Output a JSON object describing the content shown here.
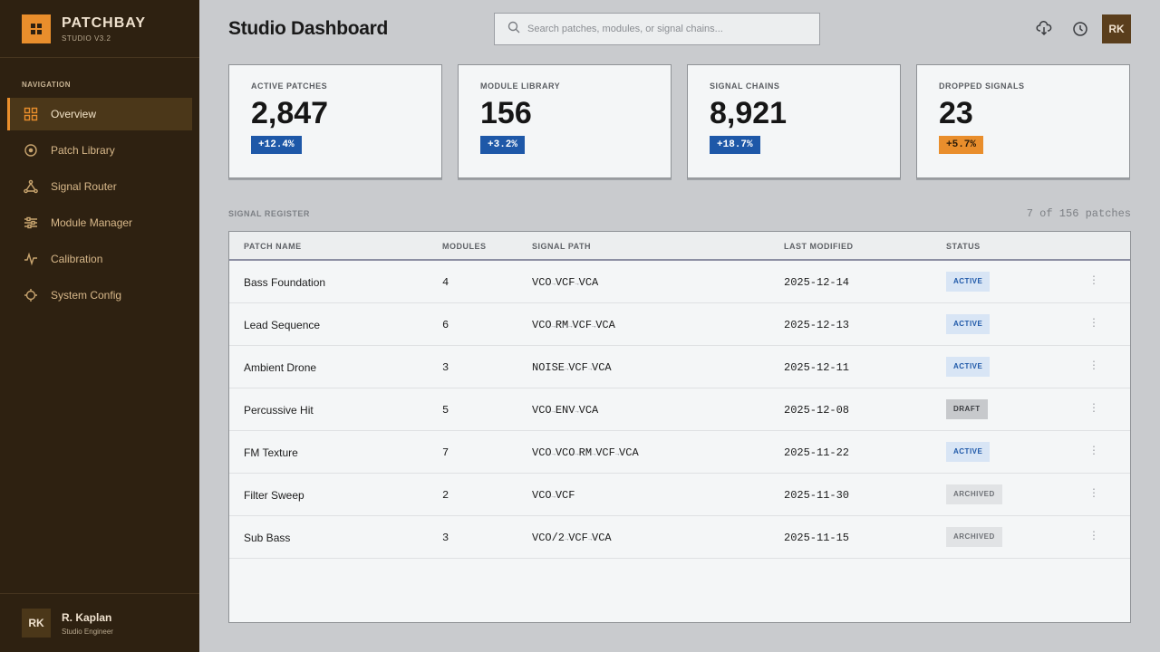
{
  "brand": {
    "name": "PATCHBAY",
    "version": "STUDIO V3.2"
  },
  "nav": {
    "heading": "NAVIGATION",
    "items": [
      {
        "label": "Overview",
        "icon": "grid-icon",
        "active": true
      },
      {
        "label": "Patch Library",
        "icon": "circle-dot-icon",
        "active": false
      },
      {
        "label": "Signal Router",
        "icon": "network-icon",
        "active": false
      },
      {
        "label": "Module Manager",
        "icon": "sliders-icon",
        "active": false
      },
      {
        "label": "Calibration",
        "icon": "pulse-icon",
        "active": false
      },
      {
        "label": "System Config",
        "icon": "crosshair-icon",
        "active": false
      }
    ]
  },
  "user": {
    "initials": "RK",
    "name": "R. Kaplan",
    "role": "Studio Engineer"
  },
  "header": {
    "title": "Studio Dashboard",
    "search_placeholder": "Search patches, modules, or signal chains...",
    "avatar_initials": "RK"
  },
  "stats": [
    {
      "label": "ACTIVE PATCHES",
      "value": "2,847",
      "delta": "+12.4%"
    },
    {
      "label": "MODULE LIBRARY",
      "value": "156",
      "delta": "+3.2%"
    },
    {
      "label": "SIGNAL CHAINS",
      "value": "8,921",
      "delta": "+18.7%"
    },
    {
      "label": "DROPPED SIGNALS",
      "value": "23",
      "delta": "+5.7%"
    }
  ],
  "register": {
    "label": "SIGNAL REGISTER",
    "count": "7 of 156 patches",
    "columns": [
      "PATCH NAME",
      "MODULES",
      "SIGNAL PATH",
      "LAST MODIFIED",
      "STATUS"
    ],
    "rows": [
      {
        "name": "Bass Foundation",
        "modules": "4",
        "path": [
          "VCO",
          "VCF",
          "VCA"
        ],
        "modified": "2025-12-14",
        "status": "ACTIVE"
      },
      {
        "name": "Lead Sequence",
        "modules": "6",
        "path": [
          "VCO",
          "RM",
          "VCF",
          "VCA"
        ],
        "modified": "2025-12-13",
        "status": "ACTIVE"
      },
      {
        "name": "Ambient Drone",
        "modules": "3",
        "path": [
          "NOISE",
          "VCF",
          "VCA"
        ],
        "modified": "2025-12-11",
        "status": "ACTIVE"
      },
      {
        "name": "Percussive Hit",
        "modules": "5",
        "path": [
          "VCO",
          "ENV",
          "VCA"
        ],
        "modified": "2025-12-08",
        "status": "DRAFT"
      },
      {
        "name": "FM Texture",
        "modules": "7",
        "path": [
          "VCO",
          "VCO",
          "RM",
          "VCF",
          "VCA"
        ],
        "modified": "2025-11-22",
        "status": "ACTIVE"
      },
      {
        "name": "Filter Sweep",
        "modules": "2",
        "path": [
          "VCO",
          "VCF"
        ],
        "modified": "2025-11-30",
        "status": "ARCHIVED"
      },
      {
        "name": "Sub Bass",
        "modules": "3",
        "path": [
          "VCO/2",
          "VCF",
          "VCA"
        ],
        "modified": "2025-11-15",
        "status": "ARCHIVED"
      }
    ]
  },
  "colors": {
    "accent": "#e98e2c",
    "sidebar": "#2e2111",
    "blue": "#1e58a8"
  }
}
